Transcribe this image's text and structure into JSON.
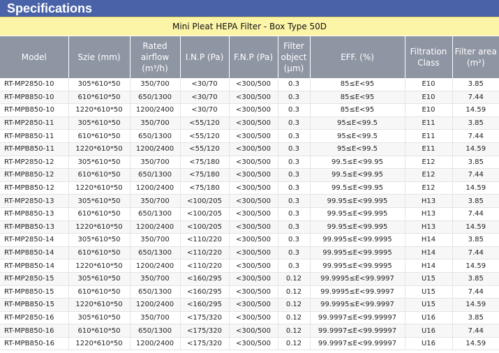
{
  "banner": {
    "title": "Specifications"
  },
  "table": {
    "title": "Mini Pleat HEPA Filter - Box Type 50D",
    "headers": [
      "Model",
      "Szie (mm)",
      "Rated airflow (m³/h)",
      "I.N.P (Pa)",
      "F.N.P (Pa)",
      "Filter object (μm)",
      "EFF. (%)",
      "Filtration Class",
      "Filter area (m²)"
    ],
    "rows": [
      [
        "RT-MP2850-10",
        "305*610*50",
        "350/700",
        "<30/70",
        "<300/500",
        "0.3",
        "85≤E<95",
        "E10",
        "3.85"
      ],
      [
        "RT-MP8850-10",
        "610*610*50",
        "650/1300",
        "<30/70",
        "<300/500",
        "0.3",
        "85≤E<95",
        "E10",
        "7.44"
      ],
      [
        "RT-MPB850-10",
        "1220*610*50",
        "1200/2400",
        "<30/70",
        "<300/500",
        "0.3",
        "85≤E<95",
        "E10",
        "14.59"
      ],
      [
        "RT-MP2850-11",
        "305*610*50",
        "350/700",
        "<55/120",
        "<300/500",
        "0.3",
        "95≤E<99.5",
        "E11",
        "3.85"
      ],
      [
        "RT-MP8850-11",
        "610*610*50",
        "650/1300",
        "<55/120",
        "<300/500",
        "0.3",
        "95≤E<99.5",
        "E11",
        "7.44"
      ],
      [
        "RT-MPB850-11",
        "1220*610*50",
        "1200/2400",
        "<55/120",
        "<300/500",
        "0.3",
        "95≤E<99.5",
        "E11",
        "14.59"
      ],
      [
        "RT-MP2850-12",
        "305*610*50",
        "350/700",
        "<75/180",
        "<300/500",
        "0.3",
        "99.5≤E<99.95",
        "E12",
        "3.85"
      ],
      [
        "RT-MP8850-12",
        "610*610*50",
        "650/1300",
        "<75/180",
        "<300/500",
        "0.3",
        "99.5≤E<99.95",
        "E12",
        "7.44"
      ],
      [
        "RT-MPB850-12",
        "1220*610*50",
        "1200/2400",
        "<75/180",
        "<300/500",
        "0.3",
        "99.5≤E<99.95",
        "E12",
        "14.59"
      ],
      [
        "RT-MP2850-13",
        "305*610*50",
        "350/700",
        "<100/205",
        "<300/500",
        "0.3",
        "99.95≤E<99.995",
        "H13",
        "3.85"
      ],
      [
        "RT-MP8850-13",
        "610*610*50",
        "650/1300",
        "<100/205",
        "<300/500",
        "0.3",
        "99.95≤E<99.995",
        "H13",
        "7.44"
      ],
      [
        "RT-MPB850-13",
        "1220*610*50",
        "1200/2400",
        "<100/205",
        "<300/500",
        "0.3",
        "99.95≤E<99.995",
        "H13",
        "14.59"
      ],
      [
        "RT-MP2850-14",
        "305*610*50",
        "350/700",
        "<110/220",
        "<300/500",
        "0.3",
        "99.995≤E<99.9995",
        "H14",
        "3.85"
      ],
      [
        "RT-MP8850-14",
        "610*610*50",
        "650/1300",
        "<110/220",
        "<300/500",
        "0.3",
        "99.995≤E<99.9995",
        "H14",
        "7.44"
      ],
      [
        "RT-MPB850-14",
        "1220*610*50",
        "1200/2400",
        "<110/220",
        "<300/500",
        "0.3",
        "99.995≤E<99.9995",
        "H14",
        "14.59"
      ],
      [
        "RT-MP2850-15",
        "305*610*50",
        "350/700",
        "<160/295",
        "<300/500",
        "0.12",
        "99.9995≤E<99.9997",
        "U15",
        "3.85"
      ],
      [
        "RT-MP8850-15",
        "610*610*50",
        "650/1300",
        "<160/295",
        "<300/500",
        "0.12",
        "99.9995≤E<99.9997",
        "U15",
        "7.44"
      ],
      [
        "RT-MPB850-15",
        "1220*610*50",
        "1200/2400",
        "<160/295",
        "<300/500",
        "0.12",
        "99.9995≤E<99.9997",
        "U15",
        "14.59"
      ],
      [
        "RT-MP2850-16",
        "305*610*50",
        "350/700",
        "<175/320",
        "<300/500",
        "0.12",
        "99.9997≤E<99.99997",
        "U16",
        "3.85"
      ],
      [
        "RT-MP8850-16",
        "610*610*50",
        "650/1300",
        "<175/320",
        "<300/500",
        "0.12",
        "99.9997≤E<99.99997",
        "U16",
        "7.44"
      ],
      [
        "RT-MPB850-16",
        "1220*610*50",
        "1200/2400",
        "<175/320",
        "<300/500",
        "0.12",
        "99.9997≤E<99.99997",
        "U16",
        "14.59"
      ]
    ]
  },
  "colors": {
    "banner": "#4a63a8",
    "title_row": "#fcf5a8",
    "header_row": "#8e95a3"
  }
}
